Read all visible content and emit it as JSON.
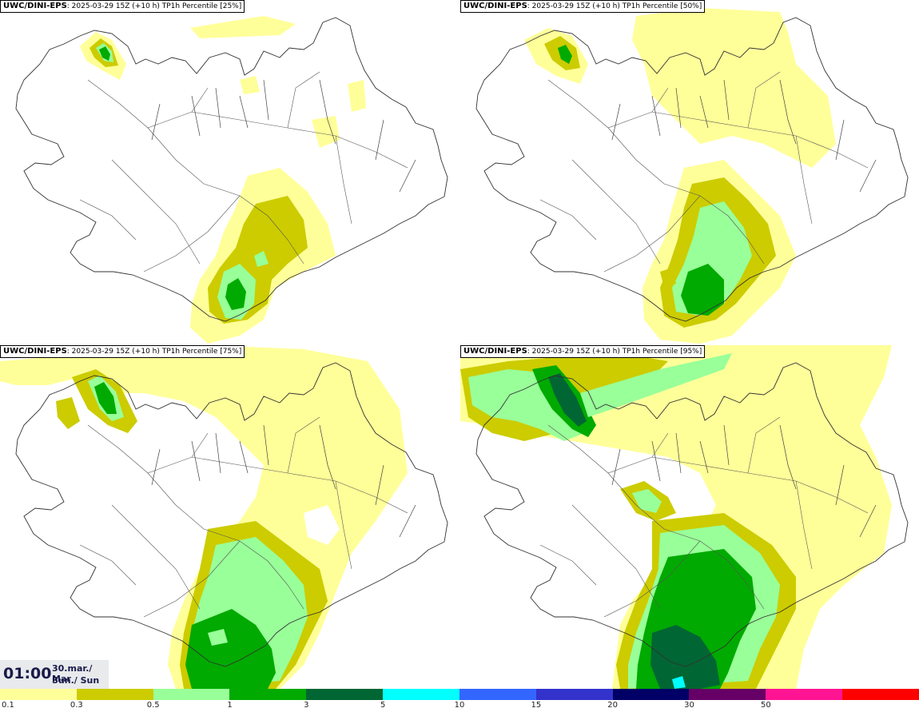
{
  "panels": [
    {
      "model": "UWC/DINI-EPS",
      "run": ": 2025-03-29 15Z (+10 h) TP1h Percentile [25%]"
    },
    {
      "model": "UWC/DINI-EPS",
      "run": ": 2025-03-29 15Z (+10 h) TP1h Percentile [50%]"
    },
    {
      "model": "UWC/DINI-EPS",
      "run": ": 2025-03-29 15Z (+10 h) TP1h Percentile [75%]"
    },
    {
      "model": "UWC/DINI-EPS",
      "run": ": 2025-03-29 15Z (+10 h) TP1h Percentile [95%]"
    }
  ],
  "time_box": {
    "time": "01:00",
    "date_line1": "30.mar./ Mar",
    "date_line2": "Sun./ Sun"
  },
  "legend": {
    "colors": [
      "#ffff99",
      "#cccc00",
      "#99ff99",
      "#00aa00",
      "#006633",
      "#00ffff",
      "#3366ff",
      "#3333cc",
      "#000066",
      "#660066",
      "#ff1493",
      "#ff0000"
    ],
    "ticks": [
      "0.1",
      "0.3",
      "0.5",
      "1",
      "3",
      "5",
      "10",
      "15",
      "20",
      "30",
      "50"
    ]
  }
}
